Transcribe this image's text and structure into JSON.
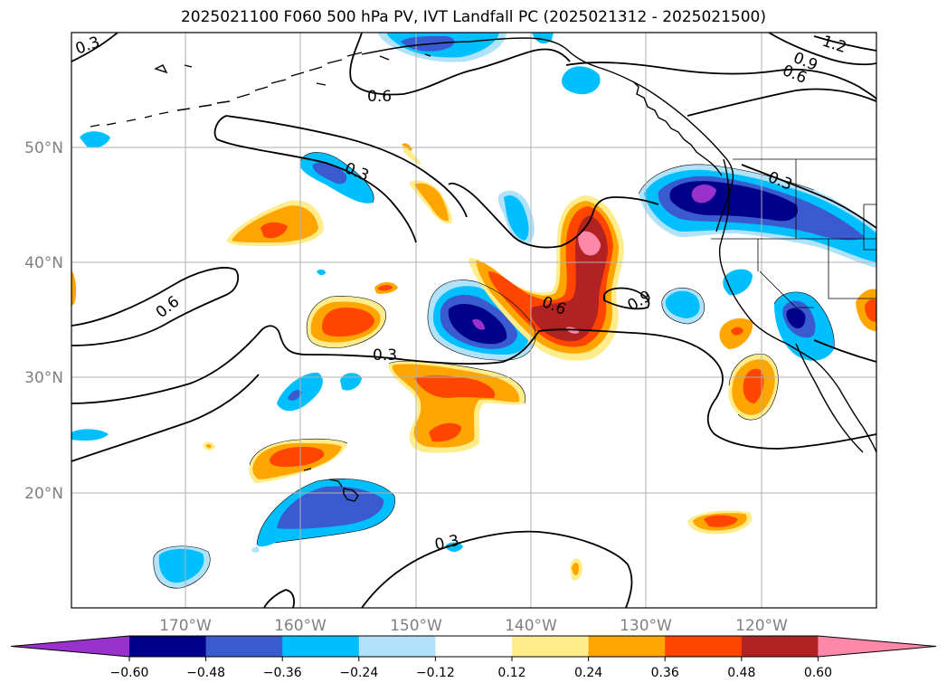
{
  "title": "2025021100 F060 500 hPa PV, IVT Landfall PC (2025021312 - 2025021500)",
  "map": {
    "lon_labels": [
      "170°W",
      "160°W",
      "150°W",
      "140°W",
      "130°W",
      "120°W"
    ],
    "lat_labels": [
      "50°N",
      "40°N",
      "30°N",
      "20°N"
    ],
    "contour_labels": [
      "0.3",
      "0.6",
      "0.3",
      "0.6",
      "0.3",
      "0.6",
      "0.9",
      "0.3",
      "0.3",
      "1.2",
      "0.9",
      "0.6"
    ],
    "colors": {
      "neg_0.60": "#9932cc",
      "neg_0.48": "#00008b",
      "neg_0.36": "#3a5bcf",
      "neg_0.24": "#00bfff",
      "neg_0.12": "#b0e2fa",
      "pos_0.12": "#ffec8b",
      "pos_0.24": "#ffa500",
      "pos_0.36": "#ff4500",
      "pos_0.48": "#b22222",
      "pos_0.60": "#ff88aa"
    }
  },
  "colorbar": {
    "tick_labels": [
      "−0.60",
      "−0.48",
      "−0.36",
      "−0.24",
      "−0.12",
      "0.12",
      "0.24",
      "0.36",
      "0.48",
      "0.60"
    ],
    "segment_colors": [
      "#9932cc",
      "#00008b",
      "#3a5bcf",
      "#00bfff",
      "#b0e2fa",
      "#ffffff",
      "#ffec8b",
      "#ffa500",
      "#ff4500",
      "#b22222",
      "#ff88aa"
    ]
  }
}
